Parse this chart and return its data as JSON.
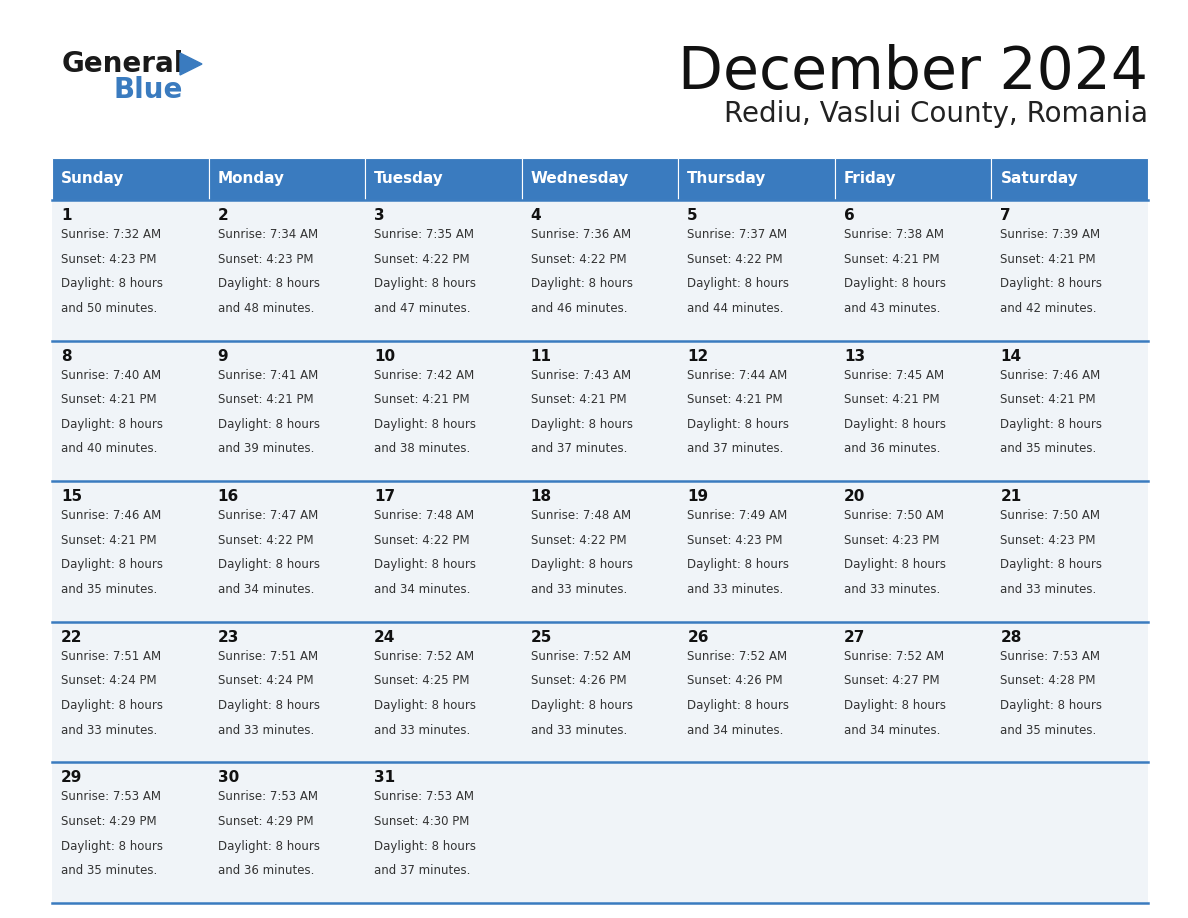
{
  "title": "December 2024",
  "subtitle": "Rediu, Vaslui County, Romania",
  "header_bg_color": "#3a7bbf",
  "header_text_color": "#ffffff",
  "cell_bg_color": "#f0f4f8",
  "day_number_color": "#111111",
  "cell_text_color": "#333333",
  "border_color": "#3a7bbf",
  "weekdays": [
    "Sunday",
    "Monday",
    "Tuesday",
    "Wednesday",
    "Thursday",
    "Friday",
    "Saturday"
  ],
  "days": [
    {
      "day": 1,
      "col": 0,
      "row": 0,
      "sunrise": "7:32 AM",
      "sunset": "4:23 PM",
      "daylight_h": "8 hours",
      "daylight_m": "50 minutes."
    },
    {
      "day": 2,
      "col": 1,
      "row": 0,
      "sunrise": "7:34 AM",
      "sunset": "4:23 PM",
      "daylight_h": "8 hours",
      "daylight_m": "48 minutes."
    },
    {
      "day": 3,
      "col": 2,
      "row": 0,
      "sunrise": "7:35 AM",
      "sunset": "4:22 PM",
      "daylight_h": "8 hours",
      "daylight_m": "47 minutes."
    },
    {
      "day": 4,
      "col": 3,
      "row": 0,
      "sunrise": "7:36 AM",
      "sunset": "4:22 PM",
      "daylight_h": "8 hours",
      "daylight_m": "46 minutes."
    },
    {
      "day": 5,
      "col": 4,
      "row": 0,
      "sunrise": "7:37 AM",
      "sunset": "4:22 PM",
      "daylight_h": "8 hours",
      "daylight_m": "44 minutes."
    },
    {
      "day": 6,
      "col": 5,
      "row": 0,
      "sunrise": "7:38 AM",
      "sunset": "4:21 PM",
      "daylight_h": "8 hours",
      "daylight_m": "43 minutes."
    },
    {
      "day": 7,
      "col": 6,
      "row": 0,
      "sunrise": "7:39 AM",
      "sunset": "4:21 PM",
      "daylight_h": "8 hours",
      "daylight_m": "42 minutes."
    },
    {
      "day": 8,
      "col": 0,
      "row": 1,
      "sunrise": "7:40 AM",
      "sunset": "4:21 PM",
      "daylight_h": "8 hours",
      "daylight_m": "40 minutes."
    },
    {
      "day": 9,
      "col": 1,
      "row": 1,
      "sunrise": "7:41 AM",
      "sunset": "4:21 PM",
      "daylight_h": "8 hours",
      "daylight_m": "39 minutes."
    },
    {
      "day": 10,
      "col": 2,
      "row": 1,
      "sunrise": "7:42 AM",
      "sunset": "4:21 PM",
      "daylight_h": "8 hours",
      "daylight_m": "38 minutes."
    },
    {
      "day": 11,
      "col": 3,
      "row": 1,
      "sunrise": "7:43 AM",
      "sunset": "4:21 PM",
      "daylight_h": "8 hours",
      "daylight_m": "37 minutes."
    },
    {
      "day": 12,
      "col": 4,
      "row": 1,
      "sunrise": "7:44 AM",
      "sunset": "4:21 PM",
      "daylight_h": "8 hours",
      "daylight_m": "37 minutes."
    },
    {
      "day": 13,
      "col": 5,
      "row": 1,
      "sunrise": "7:45 AM",
      "sunset": "4:21 PM",
      "daylight_h": "8 hours",
      "daylight_m": "36 minutes."
    },
    {
      "day": 14,
      "col": 6,
      "row": 1,
      "sunrise": "7:46 AM",
      "sunset": "4:21 PM",
      "daylight_h": "8 hours",
      "daylight_m": "35 minutes."
    },
    {
      "day": 15,
      "col": 0,
      "row": 2,
      "sunrise": "7:46 AM",
      "sunset": "4:21 PM",
      "daylight_h": "8 hours",
      "daylight_m": "35 minutes."
    },
    {
      "day": 16,
      "col": 1,
      "row": 2,
      "sunrise": "7:47 AM",
      "sunset": "4:22 PM",
      "daylight_h": "8 hours",
      "daylight_m": "34 minutes."
    },
    {
      "day": 17,
      "col": 2,
      "row": 2,
      "sunrise": "7:48 AM",
      "sunset": "4:22 PM",
      "daylight_h": "8 hours",
      "daylight_m": "34 minutes."
    },
    {
      "day": 18,
      "col": 3,
      "row": 2,
      "sunrise": "7:48 AM",
      "sunset": "4:22 PM",
      "daylight_h": "8 hours",
      "daylight_m": "33 minutes."
    },
    {
      "day": 19,
      "col": 4,
      "row": 2,
      "sunrise": "7:49 AM",
      "sunset": "4:23 PM",
      "daylight_h": "8 hours",
      "daylight_m": "33 minutes."
    },
    {
      "day": 20,
      "col": 5,
      "row": 2,
      "sunrise": "7:50 AM",
      "sunset": "4:23 PM",
      "daylight_h": "8 hours",
      "daylight_m": "33 minutes."
    },
    {
      "day": 21,
      "col": 6,
      "row": 2,
      "sunrise": "7:50 AM",
      "sunset": "4:23 PM",
      "daylight_h": "8 hours",
      "daylight_m": "33 minutes."
    },
    {
      "day": 22,
      "col": 0,
      "row": 3,
      "sunrise": "7:51 AM",
      "sunset": "4:24 PM",
      "daylight_h": "8 hours",
      "daylight_m": "33 minutes."
    },
    {
      "day": 23,
      "col": 1,
      "row": 3,
      "sunrise": "7:51 AM",
      "sunset": "4:24 PM",
      "daylight_h": "8 hours",
      "daylight_m": "33 minutes."
    },
    {
      "day": 24,
      "col": 2,
      "row": 3,
      "sunrise": "7:52 AM",
      "sunset": "4:25 PM",
      "daylight_h": "8 hours",
      "daylight_m": "33 minutes."
    },
    {
      "day": 25,
      "col": 3,
      "row": 3,
      "sunrise": "7:52 AM",
      "sunset": "4:26 PM",
      "daylight_h": "8 hours",
      "daylight_m": "33 minutes."
    },
    {
      "day": 26,
      "col": 4,
      "row": 3,
      "sunrise": "7:52 AM",
      "sunset": "4:26 PM",
      "daylight_h": "8 hours",
      "daylight_m": "34 minutes."
    },
    {
      "day": 27,
      "col": 5,
      "row": 3,
      "sunrise": "7:52 AM",
      "sunset": "4:27 PM",
      "daylight_h": "8 hours",
      "daylight_m": "34 minutes."
    },
    {
      "day": 28,
      "col": 6,
      "row": 3,
      "sunrise": "7:53 AM",
      "sunset": "4:28 PM",
      "daylight_h": "8 hours",
      "daylight_m": "35 minutes."
    },
    {
      "day": 29,
      "col": 0,
      "row": 4,
      "sunrise": "7:53 AM",
      "sunset": "4:29 PM",
      "daylight_h": "8 hours",
      "daylight_m": "35 minutes."
    },
    {
      "day": 30,
      "col": 1,
      "row": 4,
      "sunrise": "7:53 AM",
      "sunset": "4:29 PM",
      "daylight_h": "8 hours",
      "daylight_m": "36 minutes."
    },
    {
      "day": 31,
      "col": 2,
      "row": 4,
      "sunrise": "7:53 AM",
      "sunset": "4:30 PM",
      "daylight_h": "8 hours",
      "daylight_m": "37 minutes."
    }
  ],
  "num_rows": 5,
  "num_cols": 7
}
